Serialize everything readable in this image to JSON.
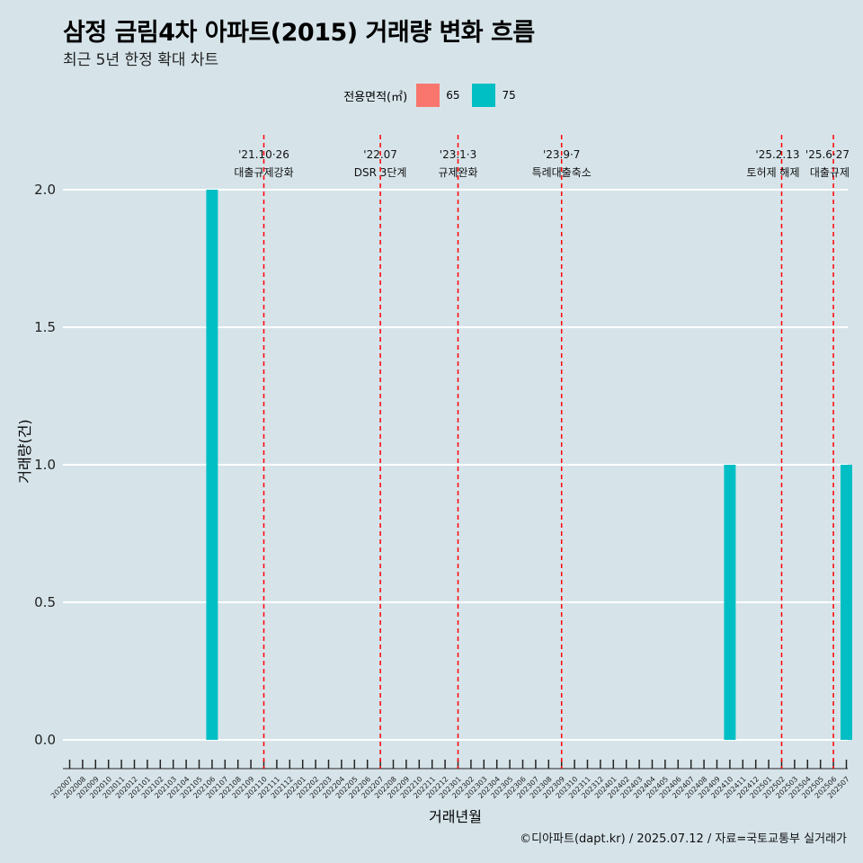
{
  "header": {
    "title": "삼정 금림4차 아파트(2015) 거래량 변화 흐름",
    "subtitle": "최근 5년 한정 확대 차트"
  },
  "legend": {
    "title": "전용면적(㎡)",
    "items": [
      {
        "label": "65",
        "color": "#F8766D"
      },
      {
        "label": "75",
        "color": "#00BFC4"
      }
    ]
  },
  "caption": "©디아파트(dapt.kr) / 2025.07.12 / 자료=국토교통부 실거래가",
  "chart_data": {
    "type": "bar",
    "xlabel": "거래년월",
    "ylabel": "거래량(건)",
    "ylim": [
      0,
      2
    ],
    "yticks": [
      "0.0",
      "0.5",
      "1.0",
      "1.5",
      "2.0"
    ],
    "categories": [
      "202007",
      "202008",
      "202009",
      "202010",
      "202011",
      "202012",
      "202101",
      "202102",
      "202103",
      "202104",
      "202105",
      "202106",
      "202107",
      "202108",
      "202109",
      "202110",
      "202111",
      "202112",
      "202201",
      "202202",
      "202203",
      "202204",
      "202205",
      "202206",
      "202207",
      "202208",
      "202209",
      "202210",
      "202211",
      "202212",
      "202301",
      "202302",
      "202303",
      "202304",
      "202305",
      "202306",
      "202307",
      "202308",
      "202309",
      "202310",
      "202311",
      "202312",
      "202401",
      "202402",
      "202403",
      "202404",
      "202405",
      "202406",
      "202407",
      "202408",
      "202409",
      "202410",
      "202411",
      "202412",
      "202501",
      "202502",
      "202503",
      "202504",
      "202505",
      "202506",
      "202507"
    ],
    "series": [
      {
        "name": "75",
        "color": "#00BFC4",
        "points": [
          {
            "x": "202106",
            "y": 2
          },
          {
            "x": "202410",
            "y": 1
          },
          {
            "x": "202507",
            "y": 1
          }
        ]
      }
    ],
    "events": [
      {
        "x": "202110",
        "date": "'21.10·26",
        "label": "대출규제강화"
      },
      {
        "x": "202207",
        "date": "'22.07",
        "label": "DSR 3단계"
      },
      {
        "x": "202301",
        "date": "'23.1·3",
        "label": "규제완화"
      },
      {
        "x": "202309",
        "date": "'23.9·7",
        "label": "특례대출축소"
      },
      {
        "x": "202502",
        "date": "'25.2.13",
        "label": "토허제 해제"
      },
      {
        "x": "202506",
        "date": "'25.6·27",
        "label": "대출규제"
      }
    ],
    "event_line_color": "#FF0000",
    "grid": true
  }
}
